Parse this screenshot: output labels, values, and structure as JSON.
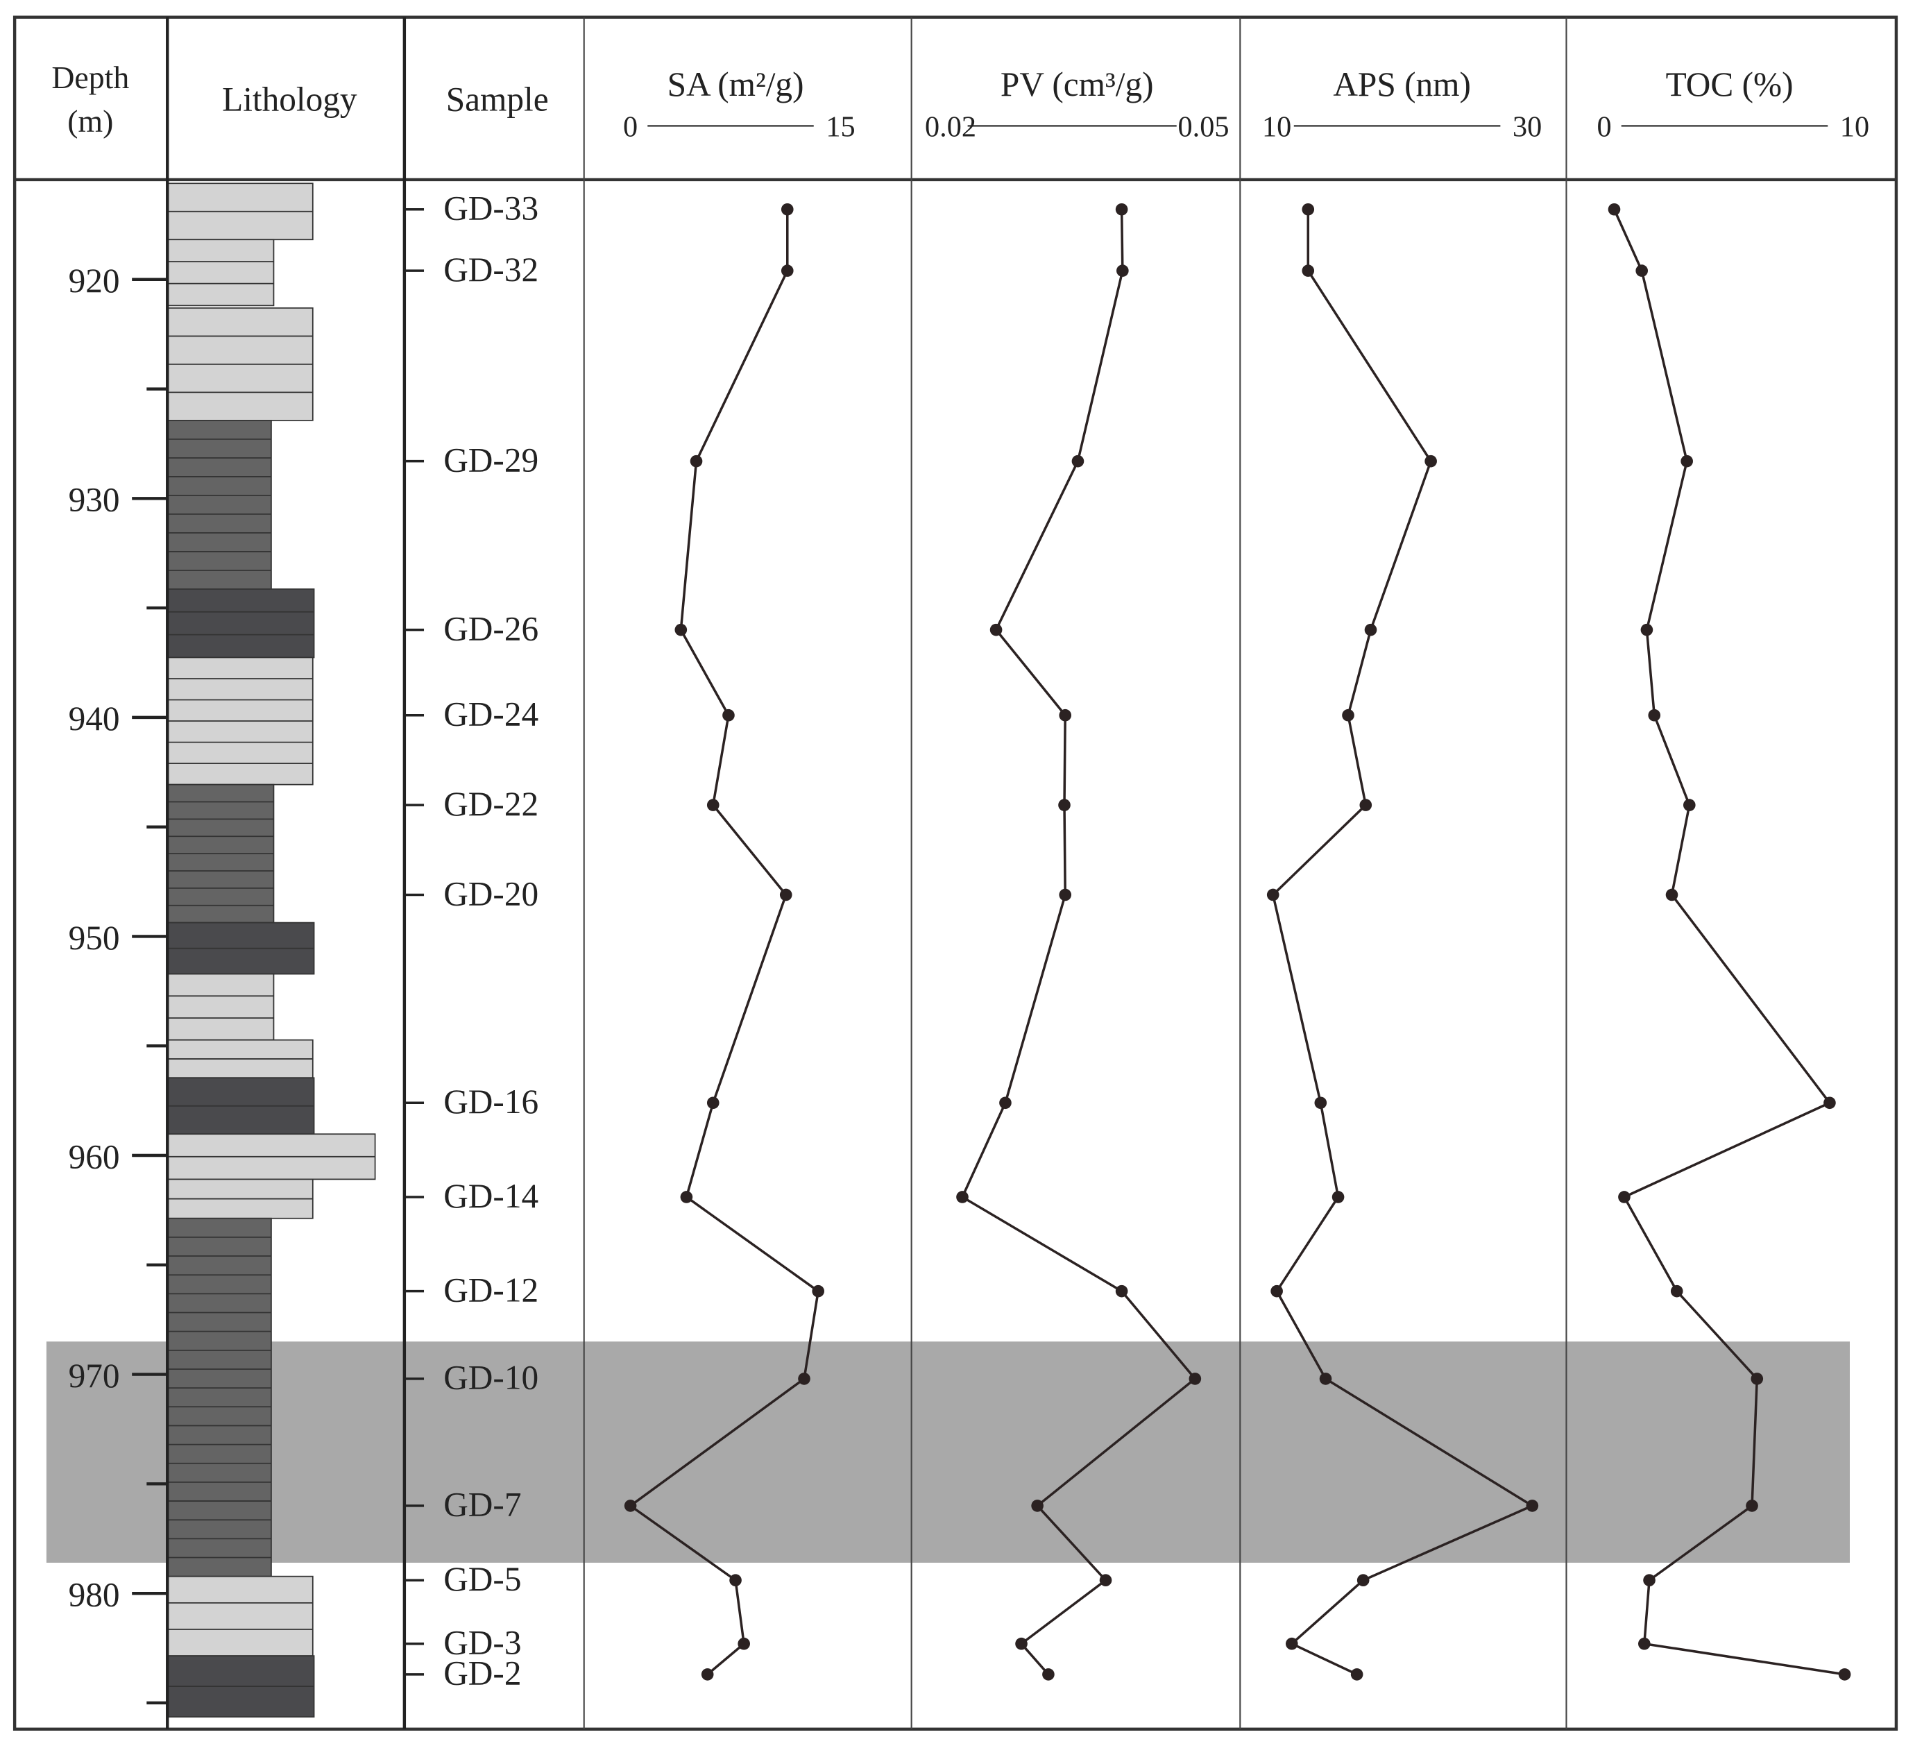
{
  "chart_data": {
    "type": "depth-profile",
    "depth_title": "Depth",
    "depth_unit": "(m)",
    "lithology_title": "Lithology",
    "sample_title": "Sample",
    "ylim": [
      915.5,
      986.2
    ],
    "yticks": [
      920,
      930,
      940,
      950,
      960,
      970,
      980
    ],
    "minor_yticks": [
      925,
      935,
      945,
      955,
      965,
      975,
      985
    ],
    "samples": [
      "GD-33",
      "GD-32",
      "GD-29",
      "GD-26",
      "GD-24",
      "GD-22",
      "GD-20",
      "GD-16",
      "GD-14",
      "GD-12",
      "GD-10",
      "GD-7",
      "GD-5",
      "GD-3",
      "GD-2"
    ],
    "depths": [
      916.8,
      919.6,
      928.3,
      936.0,
      939.9,
      944.0,
      948.1,
      957.6,
      961.9,
      966.2,
      970.2,
      976.0,
      979.4,
      982.3,
      983.7
    ],
    "highlight": [
      968.5,
      978.6
    ],
    "highlight_color": "#a9a9a9",
    "series": [
      {
        "name": "SA (m²/g)",
        "color": "#2b2222",
        "xlim": [
          0,
          15
        ],
        "xticks": [
          0,
          15
        ],
        "values": [
          11.2,
          11.2,
          4.7,
          3.6,
          7.0,
          5.9,
          11.1,
          5.9,
          4.0,
          13.4,
          12.4,
          0.0,
          7.5,
          8.1,
          5.5
        ]
      },
      {
        "name": "PV (cm³/g)",
        "color": "#2b2222",
        "xlim": [
          0.02,
          0.05
        ],
        "xticks": [
          0.02,
          0.05
        ],
        "values": [
          0.0403,
          0.0404,
          0.0351,
          0.0254,
          0.0336,
          0.0335,
          0.0336,
          0.0265,
          0.0214,
          0.0403,
          0.049,
          0.0303,
          0.0384,
          0.0284,
          0.0316
        ]
      },
      {
        "name": "APS (nm)",
        "color": "#2b2222",
        "xlim": [
          10,
          30
        ],
        "xticks": [
          10,
          30
        ],
        "values": [
          12.5,
          12.5,
          22.3,
          17.5,
          15.7,
          17.1,
          9.7,
          13.5,
          14.9,
          10.0,
          13.9,
          30.4,
          16.9,
          11.2,
          16.4
        ]
      },
      {
        "name": "TOC (%)",
        "color": "#2b2222",
        "xlim": [
          0,
          10
        ],
        "xticks": [
          0,
          10
        ],
        "values": [
          0.4,
          1.5,
          3.3,
          1.7,
          2.0,
          3.4,
          2.7,
          9.0,
          0.8,
          2.9,
          6.1,
          5.9,
          1.8,
          1.6,
          9.6
        ]
      }
    ]
  }
}
